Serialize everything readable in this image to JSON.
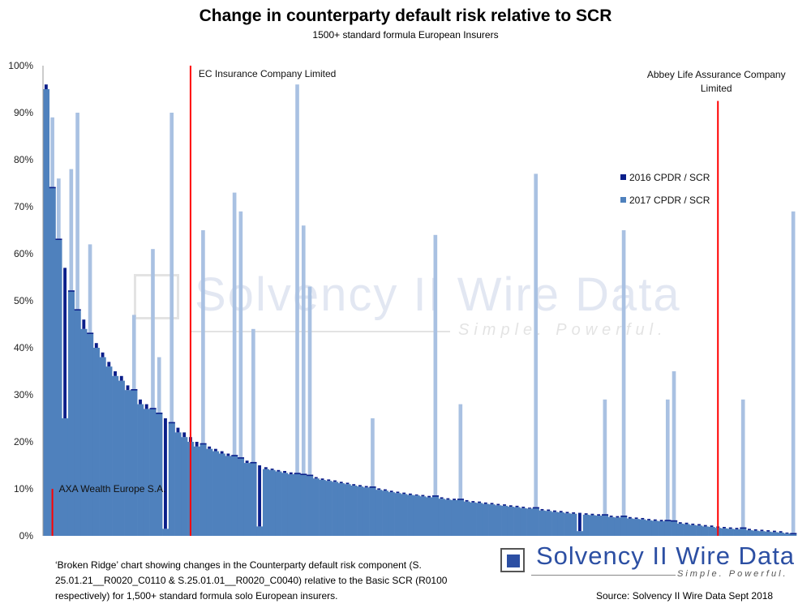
{
  "chart_data": {
    "type": "bar",
    "title": "Change in counterparty default risk relative to SCR",
    "subtitle": "1500+ standard formula European Insurers",
    "xlabel": "",
    "ylabel": "",
    "ylim": [
      0,
      100
    ],
    "yticks": [
      "0%",
      "10%",
      "20%",
      "30%",
      "40%",
      "50%",
      "60%",
      "70%",
      "80%",
      "90%",
      "100%"
    ],
    "ytick_values": [
      0,
      10,
      20,
      30,
      40,
      50,
      60,
      70,
      80,
      90,
      100
    ],
    "grid": false,
    "legend_placement": "right",
    "series": [
      {
        "name": "2016 CPDR / SCR",
        "color": "#0b1f8a",
        "values": [
          96,
          74,
          63,
          57,
          52,
          48,
          46,
          43,
          41,
          39,
          37,
          35,
          34,
          32,
          31,
          29,
          28,
          27,
          26,
          25,
          24,
          23,
          22,
          21,
          20,
          19.5,
          19,
          18.5,
          18,
          17.5,
          17,
          16.5,
          16,
          15.5,
          15,
          14.6,
          14.3,
          14,
          13.8,
          13.5,
          13.2,
          13,
          12.8,
          12.5,
          12.2,
          12,
          11.8,
          11.5,
          11.3,
          11,
          10.8,
          10.6,
          10.3,
          10.1,
          9.9,
          9.6,
          9.4,
          9.2,
          9,
          8.8,
          8.7,
          8.5,
          8.4,
          8.2,
          8,
          7.9,
          7.7,
          7.6,
          7.4,
          7.3,
          7.1,
          7,
          6.8,
          6.7,
          6.5,
          6.4,
          6.2,
          6,
          5.9,
          5.7,
          5.6,
          5.4,
          5.3,
          5.1,
          5,
          4.9,
          4.8,
          4.7,
          4.6,
          4.4,
          4.3,
          4.2,
          4.1,
          4,
          3.9,
          3.8,
          3.6,
          3.5,
          3.4,
          3.2,
          3.1,
          2.9,
          2.8,
          2.6,
          2.5,
          2.3,
          2.2,
          2,
          1.9,
          1.8,
          1.7,
          1.6,
          1.5,
          1.4,
          1.3,
          1.2,
          1.1,
          1,
          0.7,
          0.4
        ]
      },
      {
        "name": "2017 CPDR / SCR",
        "color": "#4f81bd",
        "values": [
          95,
          89,
          76,
          25,
          78,
          90,
          44,
          62,
          40,
          38,
          36,
          34,
          33,
          31,
          47,
          28,
          27,
          61,
          38,
          1.5,
          90,
          22,
          21,
          20,
          19,
          65,
          18.5,
          18,
          17.5,
          17,
          73,
          69,
          15.5,
          44,
          2,
          14.2,
          14,
          13.7,
          13.4,
          13.1,
          96,
          66,
          53,
          12.2,
          11.9,
          11.7,
          11.5,
          11.2,
          11,
          10.7,
          10.5,
          10.3,
          25,
          9.8,
          9.6,
          9.3,
          9.1,
          8.9,
          8.7,
          8.6,
          8.4,
          8.2,
          64,
          7.9,
          7.7,
          7.6,
          28,
          7.3,
          7.1,
          7,
          6.8,
          6.7,
          6.5,
          6.4,
          6.2,
          6.1,
          5.9,
          5.8,
          77,
          5.4,
          5.3,
          5.1,
          5,
          4.8,
          4.7,
          1,
          4.5,
          4.4,
          4.3,
          29,
          4,
          3.9,
          65,
          3.7,
          3.6,
          3.5,
          3.3,
          3.2,
          3.1,
          29,
          35,
          2.6,
          2.5,
          2.3,
          2.2,
          2,
          1.9,
          1.7,
          1.6,
          1.5,
          1.4,
          29,
          1.2,
          1.1,
          1,
          0.9,
          0.8,
          0.7,
          0.5,
          69
        ]
      }
    ],
    "colors": {
      "excess_2017": "#a9c1e2",
      "marker": "#ff0000"
    },
    "annotations": [
      {
        "label": "EC Insurance Company Limited",
        "index": 23,
        "line_top": 100
      },
      {
        "label": "Abbey Life Assurance Company Limited",
        "label_lines": [
          "Abbey Life Assurance Company",
          "Limited"
        ],
        "index": 107,
        "line_top": 92.5
      },
      {
        "label": "AXA Wealth Europe S.A.",
        "index": 1,
        "line_top": 10
      }
    ]
  },
  "caption": "‘Broken Ridge’ chart showing changes in the Counterparty default risk component (S. 25.01.21__R0020_C0110 & S.25.01.01__R0020_C0040) relative to the Basic SCR (R0100 respectively) for 1,500+ standard formula solo European insurers.",
  "source": "Source: Solvency II Wire Data Sept 2018",
  "logo": {
    "name": "Solvency II Wire Data",
    "tagline": "Simple. Powerful."
  },
  "watermark": {
    "name": "Solvency II Wire Data",
    "tagline": "Simple. Powerful."
  }
}
